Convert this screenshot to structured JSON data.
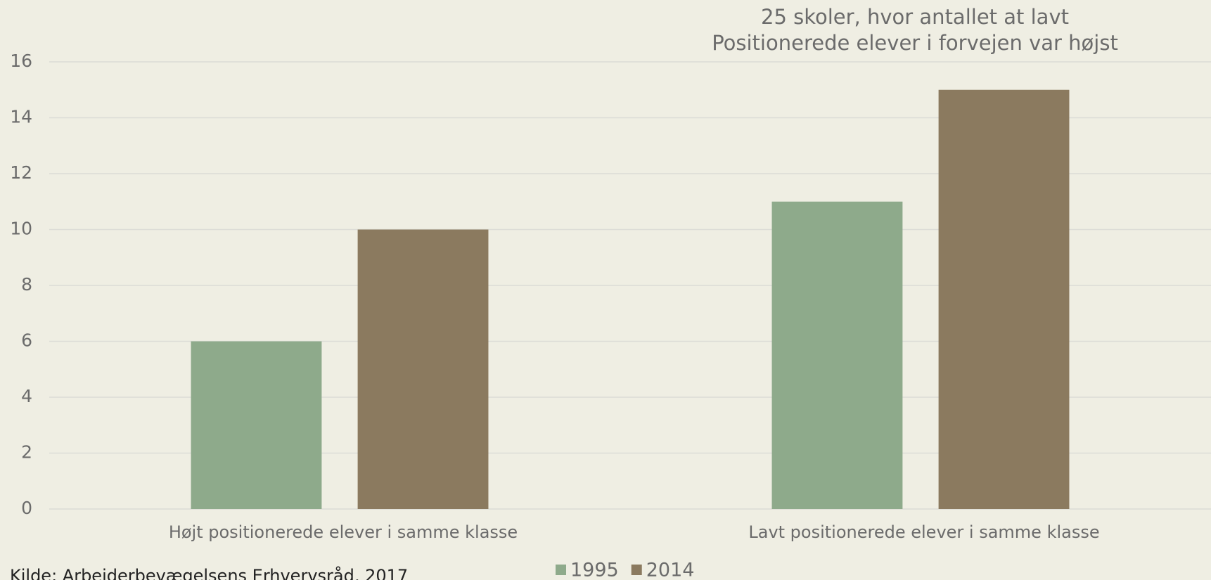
{
  "chart_data": {
    "type": "bar",
    "title": [
      "25 skoler, hvor antallet at lavt",
      "Positionerede elever i forvejen var højst"
    ],
    "categories": [
      "Højt positionerede elever i samme klasse",
      "Lavt positionerede elever i samme klasse"
    ],
    "series": [
      {
        "name": "1995",
        "color": "#8eaa8b",
        "values": [
          6,
          11
        ]
      },
      {
        "name": "2014",
        "color": "#8b7a5f",
        "values": [
          10,
          15
        ]
      }
    ],
    "ylim": [
      0,
      16
    ],
    "yticks": [
      0,
      2,
      4,
      6,
      8,
      10,
      12,
      14,
      16
    ],
    "grid": true,
    "source": "Kilde: Arbeiderbevægelsens Erhvervsråd, 2017"
  }
}
